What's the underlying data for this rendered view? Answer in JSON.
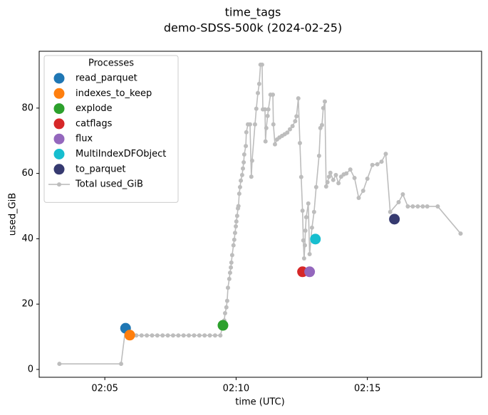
{
  "chart_data": {
    "type": "line",
    "title": "time_tags",
    "subtitle": "demo-SDSS-500k (2024-02-25)",
    "x_label": "time (UTC)",
    "y_label": "used_GiB",
    "legend_title": "Processes",
    "legend": "upper left",
    "xlim": [
      2.5,
      19.35
    ],
    "xticks": [
      {
        "value": 5,
        "label": "02:05"
      },
      {
        "value": 10,
        "label": "02:10"
      },
      {
        "value": 15,
        "label": "02:15"
      }
    ],
    "ylim": [
      -2.4,
      97.4
    ],
    "yticks": [
      0,
      20,
      40,
      60,
      80
    ],
    "series": [
      {
        "name": "read_parquet",
        "type": "scatter",
        "color": "#1f77b4",
        "x": [
          5.79
        ],
        "values": [
          12.6
        ]
      },
      {
        "name": "indexes_to_keep",
        "type": "scatter",
        "color": "#ff7f0e",
        "x": [
          5.95
        ],
        "values": [
          10.5
        ]
      },
      {
        "name": "explode",
        "type": "scatter",
        "color": "#2ca02c",
        "x": [
          9.5
        ],
        "values": [
          13.5
        ]
      },
      {
        "name": "catflags",
        "type": "scatter",
        "color": "#d62728",
        "x": [
          12.53
        ],
        "values": [
          29.9
        ]
      },
      {
        "name": "flux",
        "type": "scatter",
        "color": "#9467bd",
        "x": [
          12.8
        ],
        "values": [
          29.9
        ]
      },
      {
        "name": "MultiIndexDFObject",
        "type": "scatter",
        "color": "#17becf",
        "x": [
          13.02
        ],
        "values": [
          39.9
        ]
      },
      {
        "name": "to_parquet",
        "type": "scatter",
        "color": "#363a70",
        "x": [
          16.03
        ],
        "values": [
          46
        ]
      },
      {
        "name": "Total used_GiB",
        "type": "line",
        "color": "#bdbdbd",
        "x": [
          3.27,
          5.62,
          5.79,
          5.95,
          6.0,
          6.2,
          6.4,
          6.6,
          6.8,
          7.0,
          7.2,
          7.4,
          7.6,
          7.8,
          8.0,
          8.2,
          8.4,
          8.6,
          8.8,
          9.0,
          9.2,
          9.4,
          9.5,
          9.55,
          9.58,
          9.63,
          9.66,
          9.69,
          9.74,
          9.77,
          9.8,
          9.82,
          9.85,
          9.9,
          9.93,
          9.96,
          9.99,
          10.01,
          10.04,
          10.07,
          10.09,
          10.12,
          10.15,
          10.18,
          10.23,
          10.26,
          10.29,
          10.31,
          10.37,
          10.39,
          10.45,
          10.53,
          10.58,
          10.61,
          10.72,
          10.77,
          10.83,
          10.88,
          10.93,
          10.99,
          11.02,
          11.1,
          11.12,
          11.15,
          11.2,
          11.23,
          11.31,
          11.4,
          11.42,
          11.48,
          11.56,
          11.65,
          11.75,
          11.85,
          11.95,
          12.05,
          12.15,
          12.25,
          12.3,
          12.37,
          12.43,
          12.48,
          12.53,
          12.56,
          12.59,
          12.62,
          12.64,
          12.67,
          12.75,
          12.8,
          12.89,
          12.97,
          13.05,
          13.16,
          13.21,
          13.27,
          13.32,
          13.38,
          13.43,
          13.48,
          13.54,
          13.59,
          13.7,
          13.8,
          13.9,
          14.0,
          14.1,
          14.2,
          14.35,
          14.51,
          14.67,
          14.84,
          15.0,
          15.19,
          15.38,
          15.54,
          15.7,
          15.87,
          16.19,
          16.35,
          16.54,
          16.73,
          16.92,
          17.11,
          17.28,
          17.68,
          18.55
        ],
        "values": [
          1.7,
          1.7,
          12.6,
          10.5,
          10.4,
          10.4,
          10.4,
          10.4,
          10.4,
          10.4,
          10.4,
          10.4,
          10.4,
          10.4,
          10.4,
          10.4,
          10.4,
          10.4,
          10.4,
          10.4,
          10.4,
          10.4,
          13.5,
          15,
          17.2,
          19,
          21,
          25,
          27.7,
          29.6,
          31.2,
          32.7,
          35,
          38,
          39.7,
          41.8,
          43.8,
          45.3,
          47,
          49.3,
          50,
          53.8,
          55.8,
          57.8,
          59.5,
          61.5,
          63.4,
          65.8,
          68.4,
          72.6,
          75,
          75,
          59,
          63.9,
          75,
          79.8,
          84.6,
          87.4,
          93.3,
          93.3,
          79.6,
          79.6,
          69.8,
          73.9,
          77.6,
          79.6,
          84.1,
          84.1,
          75,
          68.9,
          70.4,
          71,
          71.5,
          72,
          72.5,
          73.5,
          74.5,
          76,
          77.5,
          83,
          69.3,
          58.9,
          48.6,
          39.5,
          34,
          38,
          42.5,
          46.6,
          50.8,
          35.3,
          43.4,
          48.2,
          55.8,
          65.4,
          73.9,
          74.8,
          80,
          82,
          56,
          57.3,
          59,
          60.2,
          58,
          59.5,
          57,
          59,
          59.7,
          60,
          61.2,
          58.6,
          52.5,
          54.7,
          58.4,
          62.6,
          62.8,
          63.6,
          66,
          48.2,
          51.2,
          53.6,
          49.9,
          49.9,
          49.9,
          49.9,
          49.9,
          49.9,
          41.6
        ]
      }
    ]
  }
}
